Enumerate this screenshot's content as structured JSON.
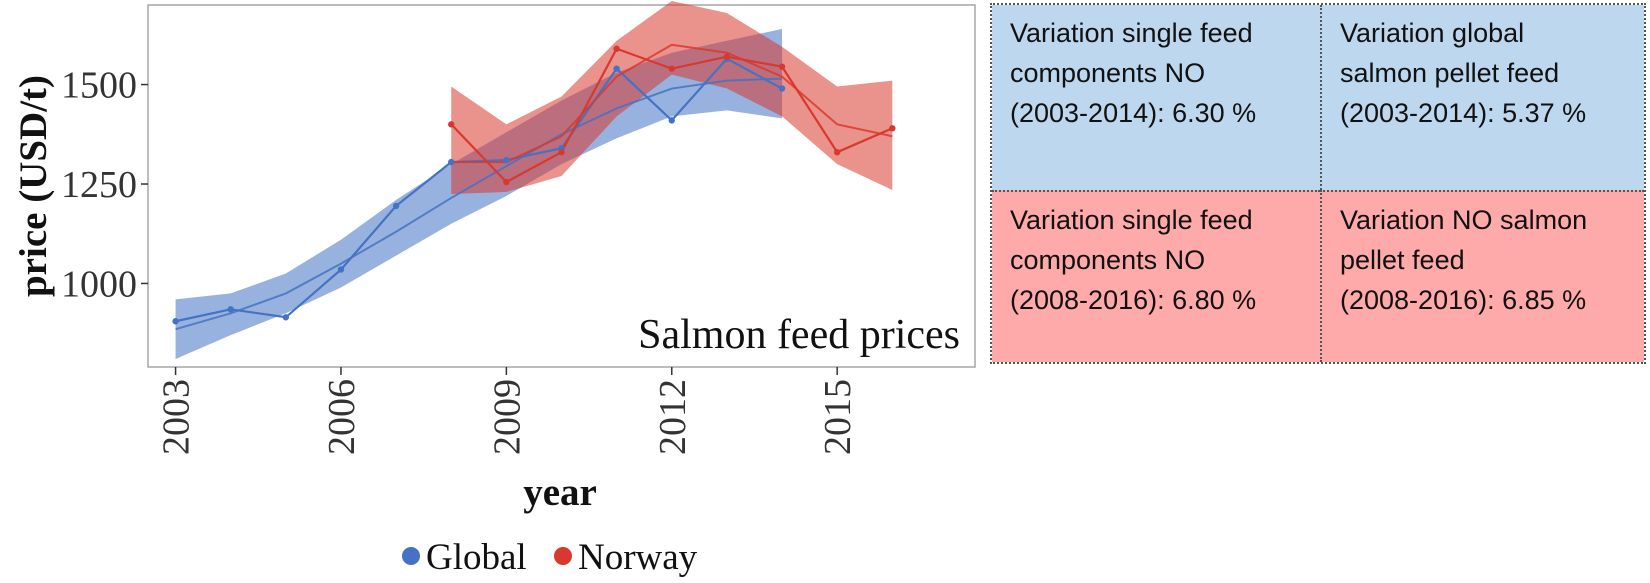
{
  "chart_data": {
    "type": "line",
    "title": "Salmon feed prices",
    "xlabel": "year",
    "ylabel": "price (USD/t)",
    "x_ticks": [
      2003,
      2006,
      2009,
      2012,
      2015
    ],
    "y_ticks": [
      1000,
      1250,
      1500
    ],
    "xlim": [
      2002.5,
      2017.5
    ],
    "ylim": [
      790,
      1700
    ],
    "legend_position": "bottom",
    "series": [
      {
        "name": "Global",
        "color": "#4472c4",
        "x": [
          2003,
          2004,
          2005,
          2006,
          2007,
          2008,
          2009,
          2010,
          2011,
          2012,
          2013,
          2014
        ],
        "values": [
          905,
          935,
          915,
          1035,
          1195,
          1305,
          1310,
          1340,
          1540,
          1410,
          1565,
          1490
        ],
        "trend": [
          885,
          925,
          975,
          1050,
          1130,
          1215,
          1295,
          1375,
          1440,
          1490,
          1510,
          1515
        ],
        "band_upper": [
          960,
          975,
          1025,
          1110,
          1210,
          1300,
          1380,
          1460,
          1530,
          1580,
          1610,
          1640
        ],
        "band_lower": [
          810,
          870,
          925,
          990,
          1070,
          1150,
          1220,
          1300,
          1365,
          1420,
          1435,
          1415
        ]
      },
      {
        "name": "Norway",
        "color": "#d9382e",
        "x": [
          2008,
          2009,
          2010,
          2011,
          2012,
          2013,
          2014,
          2015,
          2016
        ],
        "values": [
          1400,
          1255,
          1330,
          1590,
          1540,
          1570,
          1545,
          1330,
          1390
        ],
        "trend": [
          1305,
          1305,
          1370,
          1520,
          1600,
          1580,
          1520,
          1400,
          1370
        ],
        "band_upper": [
          1495,
          1400,
          1470,
          1610,
          1710,
          1680,
          1595,
          1495,
          1510
        ],
        "band_lower": [
          1225,
          1230,
          1270,
          1420,
          1525,
          1490,
          1420,
          1300,
          1235
        ]
      }
    ]
  },
  "info_boxes": [
    {
      "lines": [
        "Variation single feed",
        "components NO",
        "(2003-2014):  6.30 %"
      ],
      "color": "#bdd7ee"
    },
    {
      "lines": [
        "Variation global",
        "salmon pellet feed",
        "(2003-2014): 5.37 %"
      ],
      "color": "#bdd7ee"
    },
    {
      "lines": [
        "Variation single feed",
        "components NO",
        "(2008-2016): 6.80 %"
      ],
      "color": "#ffaaaa"
    },
    {
      "lines": [
        "Variation NO salmon",
        "pellet feed",
        "(2008-2016): 6.85 %"
      ],
      "color": "#ffaaaa"
    }
  ]
}
